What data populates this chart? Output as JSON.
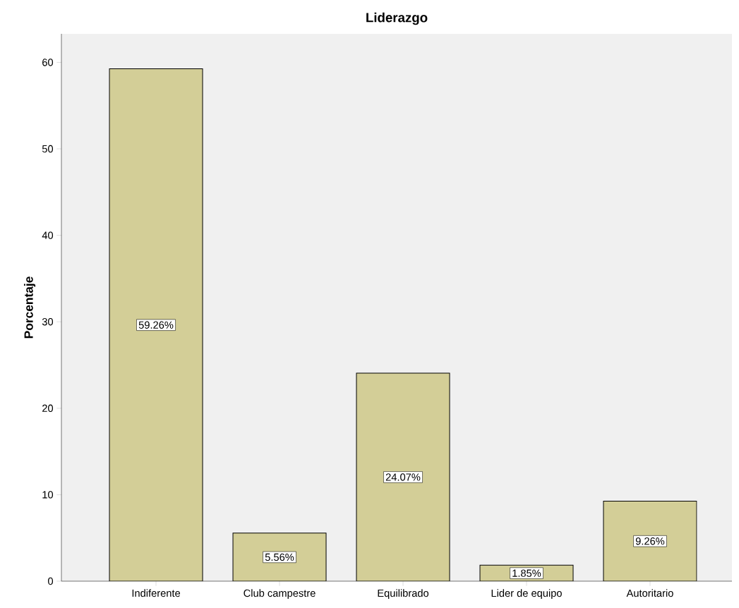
{
  "chart_data": {
    "type": "bar",
    "title": "Liderazgo",
    "ylabel": "Porcentaje",
    "categories": [
      "Indiferente",
      "Club campestre",
      "Equilibrado",
      "Lider de equipo",
      "Autoritario"
    ],
    "values": [
      59.26,
      5.56,
      24.07,
      1.85,
      9.26
    ],
    "value_labels": [
      "59.26%",
      "5.56%",
      "24.07%",
      "1.85%",
      "9.26%"
    ],
    "color": "#d3ce97",
    "ylim": [
      0,
      63.3
    ],
    "yticks": [
      0,
      10,
      20,
      30,
      40,
      50,
      60
    ],
    "grid": false
  }
}
